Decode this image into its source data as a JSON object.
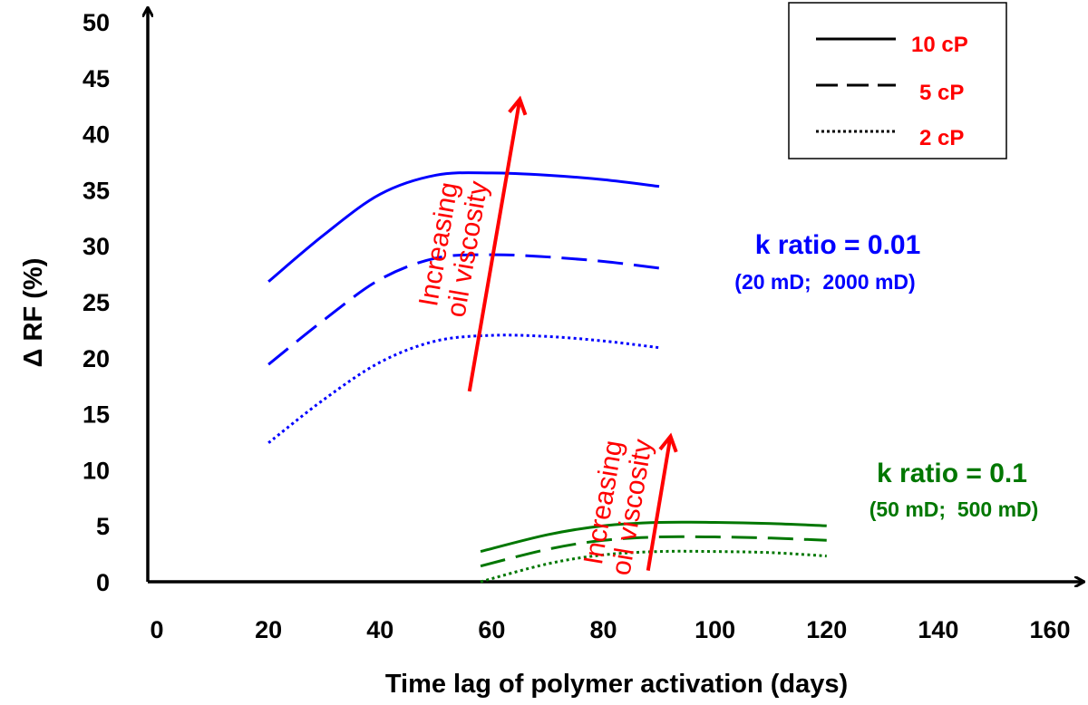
{
  "chart_data": {
    "type": "line",
    "xlabel": "Time lag of polymer activation (days)",
    "ylabel": "Δ RF (%)",
    "xlim": [
      0,
      160
    ],
    "ylim": [
      0,
      50
    ],
    "x_ticks": [
      "0",
      "20",
      "40",
      "60",
      "80",
      "100",
      "120",
      "140",
      "160"
    ],
    "y_ticks": [
      "0",
      "5",
      "10",
      "15",
      "20",
      "25",
      "30",
      "35",
      "40",
      "45",
      "50"
    ],
    "grid": false,
    "legend": {
      "position": "top-right",
      "entries": [
        {
          "label": "10 cP",
          "style": "solid"
        },
        {
          "label": "5 cP",
          "style": "dashed"
        },
        {
          "label": "2 cP",
          "style": "dotted"
        }
      ],
      "text_color": "#ff0000"
    },
    "groups": [
      {
        "annotation": "k ratio = 0.01",
        "sub_annotation": "(20 mD;  2000 mD)",
        "color": "#0000ff",
        "series": [
          {
            "name": "10 cP",
            "style": "solid",
            "x": [
              20,
              30,
              40,
              50,
              60,
              70,
              80,
              90
            ],
            "y": [
              26.8,
              31.0,
              34.6,
              36.3,
              36.5,
              36.3,
              35.9,
              35.3
            ]
          },
          {
            "name": "5 cP",
            "style": "dashed",
            "x": [
              20,
              30,
              40,
              50,
              60,
              70,
              80,
              90
            ],
            "y": [
              19.4,
              23.4,
              27.0,
              28.9,
              29.2,
              29.0,
              28.6,
              28.0
            ]
          },
          {
            "name": "2 cP",
            "style": "dotted",
            "x": [
              20,
              30,
              40,
              50,
              60,
              70,
              80,
              90
            ],
            "y": [
              12.4,
              16.3,
              19.6,
              21.5,
              22.0,
              21.9,
              21.5,
              20.9
            ]
          }
        ]
      },
      {
        "annotation": "k ratio = 0.1",
        "sub_annotation": "(50 mD;  500 mD)",
        "color": "#007700",
        "series": [
          {
            "name": "10 cP",
            "style": "solid",
            "x": [
              58,
              70,
              80,
              90,
              100,
              110,
              120
            ],
            "y": [
              2.7,
              4.2,
              5.0,
              5.3,
              5.3,
              5.2,
              5.0
            ]
          },
          {
            "name": "5 cP",
            "style": "dashed",
            "x": [
              58,
              70,
              80,
              90,
              100,
              110,
              120
            ],
            "y": [
              1.4,
              2.9,
              3.7,
              4.0,
              4.0,
              3.9,
              3.7
            ]
          },
          {
            "name": "2 cP",
            "style": "dotted",
            "x": [
              58,
              70,
              80,
              90,
              100,
              110,
              120
            ],
            "y": [
              0.0,
              1.6,
              2.4,
              2.7,
              2.7,
              2.6,
              2.3
            ]
          }
        ]
      }
    ],
    "arrows": [
      {
        "label_line1": "Increasing",
        "label_line2": "oil viscosity",
        "color": "#ff0000",
        "from": [
          56,
          17
        ],
        "to": [
          65,
          43
        ]
      },
      {
        "label_line1": "Increasing",
        "label_line2": "oil viscosity",
        "color": "#ff0000",
        "from": [
          88,
          1
        ],
        "to": [
          92,
          12.9
        ]
      }
    ]
  }
}
